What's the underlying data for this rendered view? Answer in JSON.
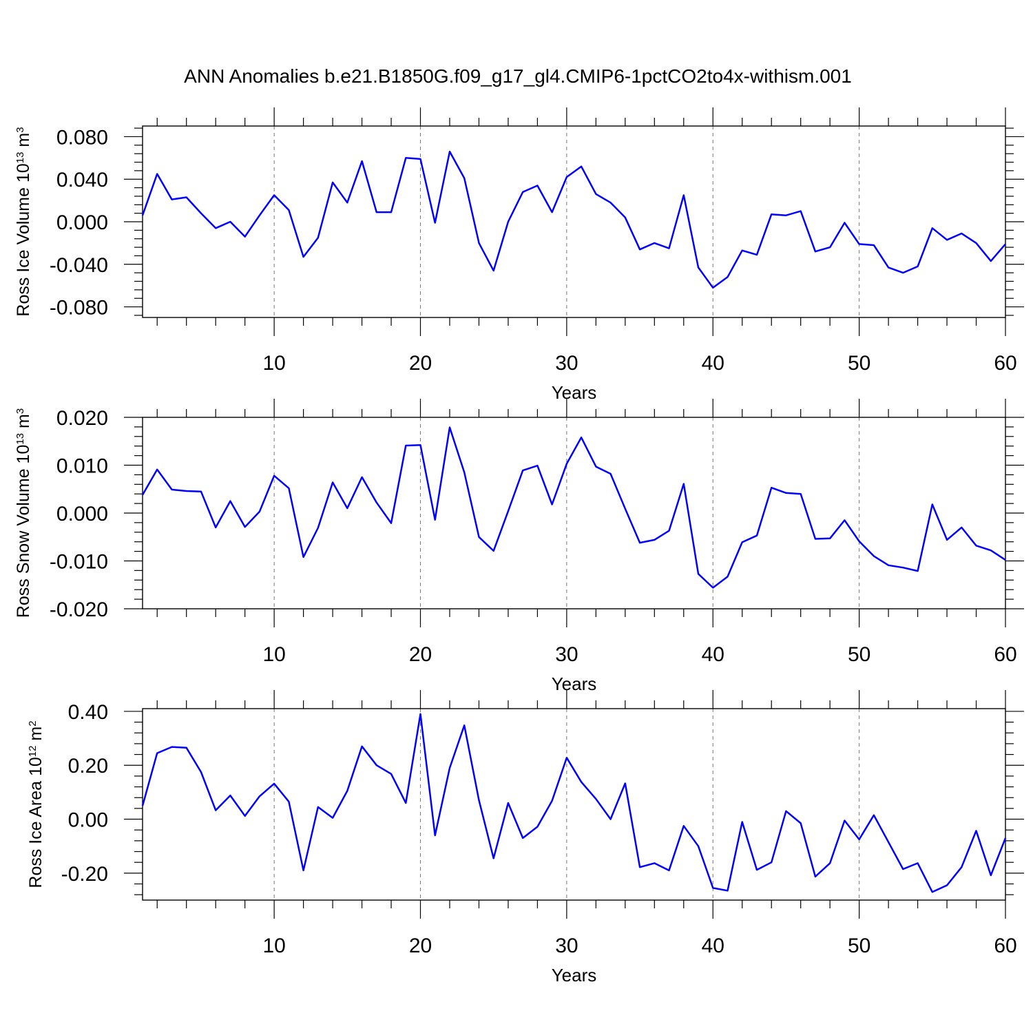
{
  "title": "ANN Anomalies b.e21.B1850G.f09_g17_gl4.CMIP6-1pctCO2to4x-withism.001",
  "colors": {
    "line": "#0000ff",
    "axis": "#000000",
    "grid": "#777777"
  },
  "chart_data": [
    {
      "type": "line",
      "series": [
        {
          "name": "Ross Ice Volume",
          "x": [
            1,
            2,
            3,
            4,
            5,
            6,
            7,
            8,
            9,
            10,
            11,
            12,
            13,
            14,
            15,
            16,
            17,
            18,
            19,
            20,
            21,
            22,
            23,
            24,
            25,
            26,
            27,
            28,
            29,
            30,
            31,
            32,
            33,
            34,
            35,
            36,
            37,
            38,
            39,
            40,
            41,
            42,
            43,
            44,
            45,
            46,
            47,
            48,
            49,
            50,
            51,
            52,
            53,
            54,
            55,
            56,
            57,
            58,
            59,
            60
          ],
          "values": [
            0.006,
            0.045,
            0.021,
            0.023,
            0.008,
            -0.006,
            0.0,
            -0.014,
            0.006,
            0.025,
            0.011,
            -0.033,
            -0.015,
            0.037,
            0.018,
            0.057,
            0.009,
            0.009,
            0.06,
            0.059,
            -0.001,
            0.066,
            0.041,
            -0.02,
            -0.046,
            0.0,
            0.028,
            0.034,
            0.009,
            0.042,
            0.052,
            0.026,
            0.018,
            0.004,
            -0.026,
            -0.02,
            -0.025,
            0.025,
            -0.043,
            -0.062,
            -0.052,
            -0.027,
            -0.031,
            0.007,
            0.006,
            0.01,
            -0.028,
            -0.024,
            -0.001,
            -0.021,
            -0.022,
            -0.043,
            -0.048,
            -0.042,
            -0.006,
            -0.017,
            -0.011,
            -0.02,
            -0.037,
            -0.021
          ]
        }
      ],
      "xlabel": "Years",
      "ylabel": "Ross Ice Volume 10",
      "ylabel_exponent": "13",
      "ylabel_unit": " m",
      "ylabel_unit_exponent": "3",
      "xlim": [
        1,
        60
      ],
      "ylim": [
        -0.09,
        0.09
      ],
      "xticks": [
        10,
        20,
        30,
        40,
        50,
        60
      ],
      "xticklabels": [
        "10",
        "20",
        "30",
        "40",
        "50",
        "60"
      ],
      "yticks": [
        0.08,
        0.04,
        0.0,
        -0.04,
        -0.08
      ],
      "yticklabels": [
        "0.080",
        "0.040",
        "0.000",
        "-0.040",
        "-0.080"
      ],
      "grid": "vertical dashed at major x ticks"
    },
    {
      "type": "line",
      "series": [
        {
          "name": "Ross Snow Volume",
          "x": [
            1,
            2,
            3,
            4,
            5,
            6,
            7,
            8,
            9,
            10,
            11,
            12,
            13,
            14,
            15,
            16,
            17,
            18,
            19,
            20,
            21,
            22,
            23,
            24,
            25,
            26,
            27,
            28,
            29,
            30,
            31,
            32,
            33,
            34,
            35,
            36,
            37,
            38,
            39,
            40,
            41,
            42,
            43,
            44,
            45,
            46,
            47,
            48,
            49,
            50,
            51,
            52,
            53,
            54,
            55,
            56,
            57,
            58,
            59,
            60
          ],
          "values": [
            0.0038,
            0.0091,
            0.0049,
            0.0046,
            0.0045,
            -0.003,
            0.0025,
            -0.0029,
            0.0003,
            0.0078,
            0.0052,
            -0.0092,
            -0.0031,
            0.0064,
            0.001,
            0.0075,
            0.0022,
            -0.0021,
            0.0141,
            0.0142,
            -0.0014,
            0.0179,
            0.0085,
            -0.005,
            -0.0079,
            0.0004,
            0.0089,
            0.0099,
            0.0018,
            0.0103,
            0.0158,
            0.0097,
            0.0082,
            0.0009,
            -0.0062,
            -0.0056,
            -0.0037,
            0.0061,
            -0.0127,
            -0.0156,
            -0.0133,
            -0.0061,
            -0.0047,
            0.0053,
            0.0042,
            0.004,
            -0.0054,
            -0.0053,
            -0.0015,
            -0.0059,
            -0.009,
            -0.0109,
            -0.0114,
            -0.0121,
            0.0018,
            -0.0056,
            -0.003,
            -0.0068,
            -0.0078,
            -0.0098
          ]
        }
      ],
      "xlabel": "Years",
      "ylabel": "Ross Snow Volume 10",
      "ylabel_exponent": "13",
      "ylabel_unit": " m",
      "ylabel_unit_exponent": "3",
      "xlim": [
        1,
        60
      ],
      "ylim": [
        -0.02,
        0.02
      ],
      "xticks": [
        10,
        20,
        30,
        40,
        50,
        60
      ],
      "xticklabels": [
        "10",
        "20",
        "30",
        "40",
        "50",
        "60"
      ],
      "yticks": [
        0.02,
        0.01,
        0.0,
        -0.01,
        -0.02
      ],
      "yticklabels": [
        "0.020",
        "0.010",
        "0.000",
        "-0.010",
        "-0.020"
      ],
      "grid": "vertical dashed at major x ticks"
    },
    {
      "type": "line",
      "series": [
        {
          "name": "Ross Ice Area",
          "x": [
            1,
            2,
            3,
            4,
            5,
            6,
            7,
            8,
            9,
            10,
            11,
            12,
            13,
            14,
            15,
            16,
            17,
            18,
            19,
            20,
            21,
            22,
            23,
            24,
            25,
            26,
            27,
            28,
            29,
            30,
            31,
            32,
            33,
            34,
            35,
            36,
            37,
            38,
            39,
            40,
            41,
            42,
            43,
            44,
            45,
            46,
            47,
            48,
            49,
            50,
            51,
            52,
            53,
            54,
            55,
            56,
            57,
            58,
            59,
            60
          ],
          "values": [
            0.05,
            0.245,
            0.268,
            0.265,
            0.175,
            0.033,
            0.088,
            0.012,
            0.085,
            0.132,
            0.065,
            -0.19,
            0.045,
            0.005,
            0.105,
            0.27,
            0.2,
            0.168,
            0.06,
            0.39,
            -0.06,
            0.19,
            0.348,
            0.07,
            -0.145,
            0.06,
            -0.07,
            -0.028,
            0.068,
            0.228,
            0.138,
            0.075,
            0.0,
            0.133,
            -0.178,
            -0.163,
            -0.19,
            -0.025,
            -0.1,
            -0.255,
            -0.265,
            -0.01,
            -0.188,
            -0.16,
            0.03,
            -0.015,
            -0.213,
            -0.163,
            -0.005,
            -0.075,
            0.015,
            -0.085,
            -0.185,
            -0.163,
            -0.27,
            -0.245,
            -0.178,
            -0.043,
            -0.208,
            -0.07
          ]
        }
      ],
      "xlabel": "Years",
      "ylabel": "Ross Ice Area 10",
      "ylabel_exponent": "12",
      "ylabel_unit": " m",
      "ylabel_unit_exponent": "2",
      "xlim": [
        1,
        60
      ],
      "ylim": [
        -0.3,
        0.41
      ],
      "xticks": [
        10,
        20,
        30,
        40,
        50,
        60
      ],
      "xticklabels": [
        "10",
        "20",
        "30",
        "40",
        "50",
        "60"
      ],
      "yticks": [
        0.4,
        0.2,
        0.0,
        -0.2
      ],
      "yticklabels": [
        "0.40",
        "0.20",
        "0.00",
        "-0.20"
      ],
      "grid": "vertical dashed at major x ticks"
    }
  ]
}
